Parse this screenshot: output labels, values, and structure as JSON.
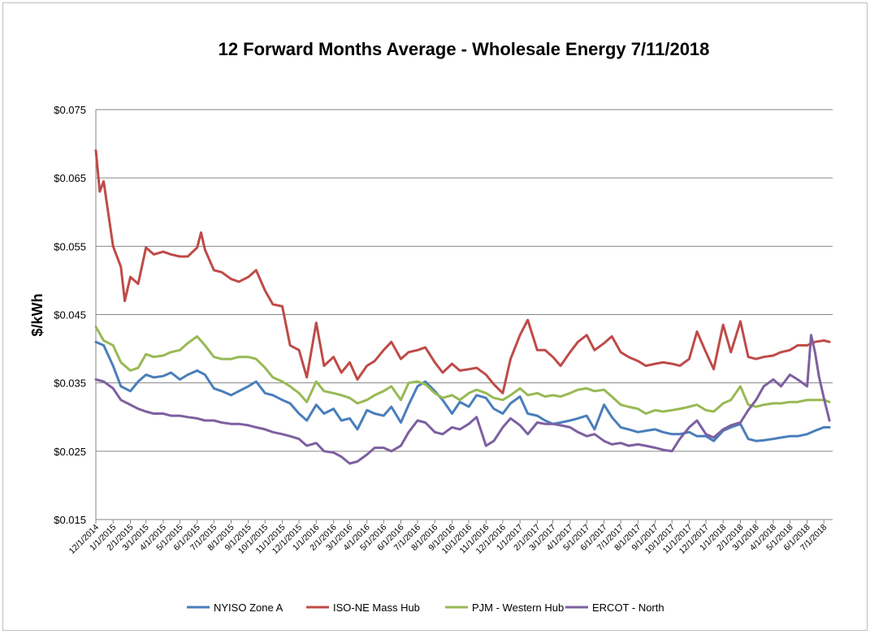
{
  "chart_data": {
    "type": "line",
    "title": "12 Forward Months Average - Wholesale Energy 7/11/2018",
    "ylabel": "$/kWh",
    "xlabel": "",
    "ylim": [
      0.015,
      0.075
    ],
    "y_ticks": [
      0.015,
      0.025,
      0.035,
      0.045,
      0.055,
      0.065,
      0.075
    ],
    "y_tick_labels": [
      "$0.015",
      "$0.025",
      "$0.035",
      "$0.045",
      "$0.055",
      "$0.065",
      "$0.075"
    ],
    "x_tick_labels": [
      "12/1/2014",
      "1/1/2015",
      "2/1/2015",
      "3/1/2015",
      "4/1/2015",
      "5/1/2015",
      "6/1/2015",
      "7/1/2015",
      "8/1/2015",
      "9/1/2015",
      "10/1/2015",
      "11/1/2015",
      "12/1/2015",
      "1/1/2016",
      "2/1/2016",
      "3/1/2016",
      "4/1/2016",
      "5/1/2016",
      "6/1/2016",
      "7/1/2016",
      "8/1/2016",
      "9/1/2016",
      "10/1/2016",
      "11/1/2016",
      "12/1/2016",
      "1/1/2017",
      "2/1/2017",
      "3/1/2017",
      "4/1/2017",
      "5/1/2017",
      "6/1/2017",
      "7/1/2017",
      "8/1/2017",
      "9/1/2017",
      "10/1/2017",
      "11/1/2017",
      "12/1/2017",
      "1/1/2018",
      "2/1/2018",
      "3/1/2018",
      "4/1/2018",
      "5/1/2018",
      "6/1/2018",
      "7/1/2018"
    ],
    "grid": true,
    "legend": "bottom",
    "series": [
      {
        "name": "NYISO Zone A",
        "color": "#4a7ebb",
        "x": [
          "12/1/2014",
          "12/15/2014",
          "1/1/2015",
          "1/15/2015",
          "2/1/2015",
          "2/15/2015",
          "3/1/2015",
          "3/15/2015",
          "4/1/2015",
          "4/15/2015",
          "5/1/2015",
          "5/15/2015",
          "6/1/2015",
          "6/15/2015",
          "7/1/2015",
          "7/15/2015",
          "8/1/2015",
          "8/15/2015",
          "9/1/2015",
          "9/15/2015",
          "10/1/2015",
          "10/15/2015",
          "11/1/2015",
          "11/15/2015",
          "12/1/2015",
          "12/15/2015",
          "1/1/2016",
          "1/15/2016",
          "2/1/2016",
          "2/15/2016",
          "3/1/2016",
          "3/15/2016",
          "4/1/2016",
          "4/15/2016",
          "5/1/2016",
          "5/15/2016",
          "6/1/2016",
          "6/15/2016",
          "7/1/2016",
          "7/15/2016",
          "8/1/2016",
          "8/15/2016",
          "9/1/2016",
          "9/15/2016",
          "10/1/2016",
          "10/15/2016",
          "11/1/2016",
          "11/15/2016",
          "12/1/2016",
          "12/15/2016",
          "1/1/2017",
          "1/15/2017",
          "2/1/2017",
          "2/15/2017",
          "3/1/2017",
          "3/15/2017",
          "4/1/2017",
          "4/15/2017",
          "5/1/2017",
          "5/15/2017",
          "6/1/2017",
          "6/15/2017",
          "7/1/2017",
          "7/15/2017",
          "8/1/2017",
          "8/15/2017",
          "9/1/2017",
          "9/15/2017",
          "10/1/2017",
          "10/15/2017",
          "11/1/2017",
          "11/15/2017",
          "12/1/2017",
          "12/15/2017",
          "1/1/2018",
          "1/15/2018",
          "2/1/2018",
          "2/15/2018",
          "3/1/2018",
          "3/15/2018",
          "4/1/2018",
          "4/15/2018",
          "5/1/2018",
          "5/15/2018",
          "6/1/2018",
          "6/15/2018",
          "7/1/2018",
          "7/11/2018"
        ],
        "values": [
          0.041,
          0.0405,
          0.0375,
          0.0345,
          0.0338,
          0.0352,
          0.0362,
          0.0358,
          0.036,
          0.0365,
          0.0355,
          0.0362,
          0.0368,
          0.0362,
          0.0342,
          0.0338,
          0.0332,
          0.0338,
          0.0345,
          0.0352,
          0.0335,
          0.0332,
          0.0325,
          0.032,
          0.0305,
          0.0295,
          0.0318,
          0.0305,
          0.0312,
          0.0295,
          0.0298,
          0.0282,
          0.031,
          0.0305,
          0.0302,
          0.0315,
          0.0292,
          0.0318,
          0.0345,
          0.0352,
          0.0338,
          0.0325,
          0.0305,
          0.0322,
          0.0315,
          0.0332,
          0.0328,
          0.0312,
          0.0305,
          0.032,
          0.033,
          0.0305,
          0.0302,
          0.0295,
          0.029,
          0.0292,
          0.0295,
          0.0298,
          0.0302,
          0.0282,
          0.0318,
          0.03,
          0.0285,
          0.0282,
          0.0278,
          0.028,
          0.0282,
          0.0278,
          0.0275,
          0.0275,
          0.0278,
          0.0272,
          0.0272,
          0.0265,
          0.028,
          0.0285,
          0.029,
          0.0268,
          0.0265,
          0.0266,
          0.0268,
          0.027,
          0.0272,
          0.0272,
          0.0275,
          0.028,
          0.0285,
          0.0285
        ]
      },
      {
        "name": "ISO-NE Mass Hub",
        "color": "#be4b48",
        "x": [
          "12/1/2014",
          "12/8/2014",
          "12/15/2014",
          "1/1/2015",
          "1/15/2015",
          "1/22/2015",
          "2/1/2015",
          "2/15/2015",
          "3/1/2015",
          "3/15/2015",
          "4/1/2015",
          "4/15/2015",
          "5/1/2015",
          "5/15/2015",
          "6/1/2015",
          "6/8/2015",
          "6/15/2015",
          "7/1/2015",
          "7/15/2015",
          "8/1/2015",
          "8/15/2015",
          "9/1/2015",
          "9/15/2015",
          "10/1/2015",
          "10/15/2015",
          "11/1/2015",
          "11/15/2015",
          "12/1/2015",
          "12/15/2015",
          "1/1/2016",
          "1/15/2016",
          "2/1/2016",
          "2/15/2016",
          "3/1/2016",
          "3/15/2016",
          "4/1/2016",
          "4/15/2016",
          "5/1/2016",
          "5/15/2016",
          "6/1/2016",
          "6/15/2016",
          "7/1/2016",
          "7/15/2016",
          "8/1/2016",
          "8/15/2016",
          "9/1/2016",
          "9/15/2016",
          "10/1/2016",
          "10/15/2016",
          "11/1/2016",
          "11/15/2016",
          "12/1/2016",
          "12/15/2016",
          "1/1/2017",
          "1/15/2017",
          "2/1/2017",
          "2/15/2017",
          "3/1/2017",
          "3/15/2017",
          "4/1/2017",
          "4/15/2017",
          "5/1/2017",
          "5/15/2017",
          "6/1/2017",
          "6/15/2017",
          "7/1/2017",
          "7/15/2017",
          "8/1/2017",
          "8/15/2017",
          "9/1/2017",
          "9/15/2017",
          "10/1/2017",
          "10/15/2017",
          "11/1/2017",
          "11/15/2017",
          "12/1/2017",
          "12/15/2017",
          "1/1/2018",
          "1/15/2018",
          "2/1/2018",
          "2/15/2018",
          "3/1/2018",
          "3/15/2018",
          "4/1/2018",
          "4/15/2018",
          "5/1/2018",
          "5/15/2018",
          "6/1/2018",
          "6/15/2018",
          "7/1/2018",
          "7/11/2018"
        ],
        "values": [
          0.069,
          0.063,
          0.0645,
          0.055,
          0.052,
          0.047,
          0.0505,
          0.0495,
          0.0548,
          0.0538,
          0.0542,
          0.0538,
          0.0535,
          0.0535,
          0.0548,
          0.057,
          0.0545,
          0.0515,
          0.0512,
          0.0502,
          0.0498,
          0.0505,
          0.0515,
          0.0485,
          0.0465,
          0.0462,
          0.0405,
          0.0398,
          0.0358,
          0.0438,
          0.0375,
          0.0388,
          0.0365,
          0.038,
          0.0355,
          0.0375,
          0.0382,
          0.0398,
          0.041,
          0.0385,
          0.0395,
          0.0398,
          0.0402,
          0.038,
          0.0365,
          0.0378,
          0.0368,
          0.037,
          0.0372,
          0.0362,
          0.0348,
          0.0335,
          0.0385,
          0.042,
          0.0442,
          0.0398,
          0.0398,
          0.0388,
          0.0375,
          0.0395,
          0.041,
          0.042,
          0.0398,
          0.0408,
          0.0418,
          0.0395,
          0.0388,
          0.0382,
          0.0375,
          0.0378,
          0.038,
          0.0378,
          0.0375,
          0.0385,
          0.0425,
          0.0395,
          0.037,
          0.0435,
          0.0395,
          0.044,
          0.0388,
          0.0385,
          0.0388,
          0.039,
          0.0395,
          0.0398,
          0.0405,
          0.0405,
          0.041,
          0.0412,
          0.041
        ]
      },
      {
        "name": "PJM - Western Hub",
        "color": "#98b954",
        "x": [
          "12/1/2014",
          "12/15/2014",
          "1/1/2015",
          "1/15/2015",
          "2/1/2015",
          "2/15/2015",
          "3/1/2015",
          "3/15/2015",
          "4/1/2015",
          "4/15/2015",
          "5/1/2015",
          "5/15/2015",
          "6/1/2015",
          "6/15/2015",
          "7/1/2015",
          "7/15/2015",
          "8/1/2015",
          "8/15/2015",
          "9/1/2015",
          "9/15/2015",
          "10/1/2015",
          "10/15/2015",
          "11/1/2015",
          "11/15/2015",
          "12/1/2015",
          "12/15/2015",
          "1/1/2016",
          "1/15/2016",
          "2/1/2016",
          "2/15/2016",
          "3/1/2016",
          "3/15/2016",
          "4/1/2016",
          "4/15/2016",
          "5/1/2016",
          "5/15/2016",
          "6/1/2016",
          "6/15/2016",
          "7/1/2016",
          "7/15/2016",
          "8/1/2016",
          "8/15/2016",
          "9/1/2016",
          "9/15/2016",
          "10/1/2016",
          "10/15/2016",
          "11/1/2016",
          "11/15/2016",
          "12/1/2016",
          "12/15/2016",
          "1/1/2017",
          "1/15/2017",
          "2/1/2017",
          "2/15/2017",
          "3/1/2017",
          "3/15/2017",
          "4/1/2017",
          "4/15/2017",
          "5/1/2017",
          "5/15/2017",
          "6/1/2017",
          "6/15/2017",
          "7/1/2017",
          "7/15/2017",
          "8/1/2017",
          "8/15/2017",
          "9/1/2017",
          "9/15/2017",
          "10/1/2017",
          "10/15/2017",
          "11/1/2017",
          "11/15/2017",
          "12/1/2017",
          "12/15/2017",
          "1/1/2018",
          "1/15/2018",
          "2/1/2018",
          "2/15/2018",
          "3/1/2018",
          "3/15/2018",
          "4/1/2018",
          "4/15/2018",
          "5/1/2018",
          "5/15/2018",
          "6/1/2018",
          "6/15/2018",
          "7/1/2018",
          "7/11/2018"
        ],
        "values": [
          0.0432,
          0.0412,
          0.0405,
          0.038,
          0.0368,
          0.0372,
          0.0392,
          0.0388,
          0.039,
          0.0395,
          0.0398,
          0.0408,
          0.0418,
          0.0405,
          0.0388,
          0.0385,
          0.0385,
          0.0388,
          0.0388,
          0.0385,
          0.0372,
          0.0358,
          0.0352,
          0.0345,
          0.0335,
          0.0322,
          0.0352,
          0.0338,
          0.0335,
          0.0332,
          0.0328,
          0.032,
          0.0325,
          0.0332,
          0.0338,
          0.0345,
          0.0325,
          0.035,
          0.0352,
          0.0348,
          0.0335,
          0.0328,
          0.0332,
          0.0325,
          0.0335,
          0.034,
          0.0335,
          0.0328,
          0.0325,
          0.0332,
          0.0342,
          0.0332,
          0.0335,
          0.033,
          0.0332,
          0.033,
          0.0335,
          0.034,
          0.0342,
          0.0338,
          0.034,
          0.033,
          0.0318,
          0.0315,
          0.0312,
          0.0305,
          0.031,
          0.0308,
          0.031,
          0.0312,
          0.0315,
          0.0318,
          0.031,
          0.0308,
          0.032,
          0.0325,
          0.0345,
          0.0318,
          0.0315,
          0.0318,
          0.032,
          0.032,
          0.0322,
          0.0322,
          0.0325,
          0.0325,
          0.0325,
          0.0322
        ]
      },
      {
        "name": "ERCOT - North",
        "color": "#7d60a0",
        "x": [
          "12/1/2014",
          "12/15/2014",
          "1/1/2015",
          "1/15/2015",
          "2/1/2015",
          "2/15/2015",
          "3/1/2015",
          "3/15/2015",
          "4/1/2015",
          "4/15/2015",
          "5/1/2015",
          "5/15/2015",
          "6/1/2015",
          "6/15/2015",
          "7/1/2015",
          "7/15/2015",
          "8/1/2015",
          "8/15/2015",
          "9/1/2015",
          "9/15/2015",
          "10/1/2015",
          "10/15/2015",
          "11/1/2015",
          "11/15/2015",
          "12/1/2015",
          "12/15/2015",
          "1/1/2016",
          "1/15/2016",
          "2/1/2016",
          "2/15/2016",
          "3/1/2016",
          "3/15/2016",
          "4/1/2016",
          "4/15/2016",
          "5/1/2016",
          "5/15/2016",
          "6/1/2016",
          "6/15/2016",
          "7/1/2016",
          "7/15/2016",
          "8/1/2016",
          "8/15/2016",
          "9/1/2016",
          "9/15/2016",
          "10/1/2016",
          "10/15/2016",
          "11/1/2016",
          "11/15/2016",
          "12/1/2016",
          "12/15/2016",
          "1/1/2017",
          "1/15/2017",
          "2/1/2017",
          "2/15/2017",
          "3/1/2017",
          "3/15/2017",
          "4/1/2017",
          "4/15/2017",
          "5/1/2017",
          "5/15/2017",
          "6/1/2017",
          "6/15/2017",
          "7/1/2017",
          "7/15/2017",
          "8/1/2017",
          "8/15/2017",
          "9/1/2017",
          "9/15/2017",
          "10/1/2017",
          "10/15/2017",
          "11/1/2017",
          "11/15/2017",
          "12/1/2017",
          "12/15/2017",
          "1/1/2018",
          "1/15/2018",
          "2/1/2018",
          "2/15/2018",
          "3/1/2018",
          "3/15/2018",
          "4/1/2018",
          "4/15/2018",
          "5/1/2018",
          "5/15/2018",
          "6/1/2018",
          "6/8/2018",
          "6/15/2018",
          "6/22/2018",
          "7/1/2018",
          "7/11/2018"
        ],
        "values": [
          0.0355,
          0.0352,
          0.0342,
          0.0325,
          0.0318,
          0.0312,
          0.0308,
          0.0305,
          0.0305,
          0.0302,
          0.0302,
          0.03,
          0.0298,
          0.0295,
          0.0295,
          0.0292,
          0.029,
          0.029,
          0.0288,
          0.0285,
          0.0282,
          0.0278,
          0.0275,
          0.0272,
          0.0268,
          0.0258,
          0.0262,
          0.025,
          0.0248,
          0.0242,
          0.0232,
          0.0235,
          0.0245,
          0.0255,
          0.0255,
          0.025,
          0.0258,
          0.0278,
          0.0295,
          0.0292,
          0.0278,
          0.0275,
          0.0285,
          0.0282,
          0.029,
          0.03,
          0.0258,
          0.0265,
          0.0285,
          0.0298,
          0.0288,
          0.0275,
          0.0292,
          0.029,
          0.029,
          0.0288,
          0.0285,
          0.0278,
          0.0272,
          0.0275,
          0.0265,
          0.026,
          0.0262,
          0.0258,
          0.026,
          0.0258,
          0.0255,
          0.0252,
          0.025,
          0.0268,
          0.0285,
          0.0295,
          0.0275,
          0.027,
          0.0282,
          0.0288,
          0.0292,
          0.031,
          0.0325,
          0.0345,
          0.0355,
          0.0345,
          0.0362,
          0.0355,
          0.0345,
          0.042,
          0.0395,
          0.036,
          0.0328,
          0.0295
        ]
      }
    ]
  }
}
